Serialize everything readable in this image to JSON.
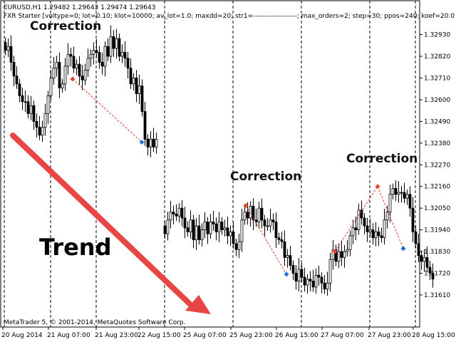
{
  "chart_data": {
    "type": "candlestick",
    "symbol_line": "EURUSD,H1  1.29482 1.29643 1.29474 1.29643",
    "indicator_line": "FXR Starter [voltype=0; lot=0.10; klot=10000; av_lot=1.0; maxdd=20; str1=-------------------; max_orders=2; step=30; ppos=240; koef=20.0",
    "copyright": "MetaTrader 5, © 2001-2014, MetaQuotes Software Corp.",
    "x_labels": [
      "20 Aug 2014",
      "21 Aug 07:00",
      "21 Aug 23:00",
      "22 Aug 15:00",
      "25 Aug 07:00",
      "25 Aug 23:00",
      "26 Aug 15:00",
      "27 Aug 07:00",
      "27 Aug 23:00",
      "28 Aug 15:00"
    ],
    "y_ticks": [
      "1.32930",
      "1.32820",
      "1.32710",
      "1.32600",
      "1.32490",
      "1.32380",
      "1.32270",
      "1.32160",
      "1.32050",
      "1.31940",
      "1.31830",
      "1.31720",
      "1.31610"
    ],
    "ylim": [
      1.3157,
      1.3299
    ],
    "session_separators": 8,
    "colors": {
      "up": "#ffffff",
      "down": "#000000",
      "arrow": "#e84545",
      "buy_marker": "#e8432c",
      "sell_marker": "#1f6fd4",
      "grid": "#000000"
    },
    "segment_a_close": [
      1.3285,
      1.3287,
      1.3279,
      1.3272,
      1.3268,
      1.3262,
      1.3259,
      1.3259,
      1.3253,
      1.3257,
      1.3249,
      1.3246,
      1.3242,
      1.3246,
      1.3253,
      1.3262,
      1.3271,
      1.3276,
      1.3279,
      1.3266,
      1.3268,
      1.3277,
      1.3283,
      1.3282,
      1.3276,
      1.3278,
      1.3272,
      1.327,
      1.3275,
      1.3281,
      1.3283,
      1.3285,
      1.3284,
      1.3279,
      1.3277,
      1.3287,
      1.3282,
      1.3292,
      1.3286,
      1.3291,
      1.3282,
      1.3284,
      1.3281,
      1.3276,
      1.3268,
      1.3271,
      1.3263,
      1.3267,
      1.3254,
      1.324,
      1.3236,
      1.324,
      1.3236,
      1.324
    ],
    "segment_b_close": [
      1.3192,
      1.3199,
      1.3203,
      1.3202,
      1.3201,
      1.3205,
      1.32,
      1.3195,
      1.3193,
      1.3199,
      1.3189,
      1.3196,
      1.3189,
      1.3194,
      1.3198,
      1.3192,
      1.3198,
      1.3197,
      1.3193,
      1.3198,
      1.3194,
      1.3195,
      1.3191,
      1.3193,
      1.3187,
      1.3184,
      1.3188,
      1.3199,
      1.3203,
      1.32,
      1.3206,
      1.3199,
      1.3198,
      1.3205,
      1.3199,
      1.3196,
      1.3196,
      1.3199,
      1.3198,
      1.319,
      1.3189,
      1.3188,
      1.318,
      1.3181,
      1.3176,
      1.3172,
      1.3168,
      1.3174,
      1.317,
      1.3166,
      1.3169,
      1.3168,
      1.3165,
      1.3171,
      1.317,
      1.3167,
      1.3164,
      1.3167,
      1.3179,
      1.3184,
      1.3178,
      1.3183,
      1.318,
      1.3183,
      1.3184,
      1.3191,
      1.3195,
      1.3194,
      1.3204,
      1.32,
      1.3196,
      1.3193,
      1.3194,
      1.319,
      1.3193,
      1.3191,
      1.319,
      1.3199,
      1.3203,
      1.3212,
      1.3215,
      1.3212,
      1.3213,
      1.3213,
      1.321,
      1.3212,
      1.3205,
      1.3193,
      1.3187,
      1.3181,
      1.3178,
      1.318,
      1.3175,
      1.3172,
      1.3169
    ],
    "annotations": [
      "Correction",
      "Correction",
      "Correction",
      "Trend"
    ]
  }
}
